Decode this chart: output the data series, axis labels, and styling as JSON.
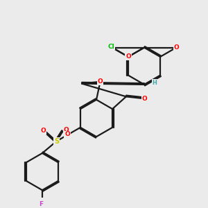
{
  "bg": "#ebebeb",
  "bond_color": "#1a1a1a",
  "lw": 1.6,
  "atom_colors": {
    "O": "#ff0000",
    "S": "#cccc00",
    "Cl": "#00bb00",
    "F": "#cc44cc",
    "H": "#44aaaa",
    "C": "#1a1a1a"
  },
  "figsize": [
    3.0,
    3.0
  ],
  "dpi": 100
}
